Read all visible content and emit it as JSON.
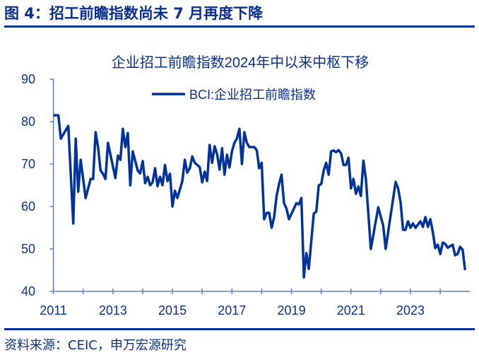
{
  "header": {
    "figure_title": "图 4：招工前瞻指数尚未 7 月再度下降"
  },
  "footer": {
    "source": "资料来源：CEIC，申万宏源研究"
  },
  "colors": {
    "line": "#003399",
    "text": "#0a2f8f",
    "axis": "#5b7fd6"
  },
  "chart_data": {
    "type": "line",
    "title": "企业招工前瞻指数2024年中以来中枢下移",
    "xlabel": "",
    "ylabel": "",
    "ylim": [
      40,
      90
    ],
    "yticks": [
      "90",
      "80",
      "70",
      "60",
      "50",
      "40"
    ],
    "xlim": [
      "2011-01",
      "2025-01"
    ],
    "xticks": [
      "2011",
      "2013",
      "2015",
      "2017",
      "2019",
      "2021",
      "2023"
    ],
    "grid": false,
    "legend": "top-center",
    "series": [
      {
        "name": "BCI:企业招工前瞻指数",
        "x": [
          "2011-01",
          "2011-03",
          "2011-04",
          "2011-07",
          "2011-09",
          "2011-10",
          "2011-11",
          "2011-12",
          "2012-02",
          "2012-04",
          "2012-05",
          "2012-06",
          "2012-07",
          "2012-08",
          "2012-09",
          "2012-10",
          "2012-11",
          "2013-01",
          "2013-02",
          "2013-03",
          "2013-04",
          "2013-05",
          "2013-06",
          "2013-07",
          "2013-08",
          "2013-09",
          "2013-11",
          "2013-12",
          "2014-01",
          "2014-02",
          "2014-03",
          "2014-04",
          "2014-05",
          "2014-06",
          "2014-07",
          "2014-08",
          "2014-09",
          "2014-10",
          "2014-11",
          "2014-12",
          "2015-01",
          "2015-02",
          "2015-03",
          "2015-05",
          "2015-06",
          "2015-07",
          "2015-08",
          "2015-09",
          "2015-10",
          "2015-12",
          "2016-01",
          "2016-02",
          "2016-03",
          "2016-04",
          "2016-05",
          "2016-06",
          "2016-07",
          "2016-08",
          "2016-09",
          "2016-10",
          "2016-11",
          "2016-12",
          "2017-01",
          "2017-02",
          "2017-03",
          "2017-04",
          "2017-05",
          "2017-06",
          "2017-07",
          "2017-08",
          "2017-10",
          "2017-11",
          "2017-12",
          "2018-01",
          "2018-02",
          "2018-03",
          "2018-04",
          "2018-05",
          "2018-06",
          "2018-07",
          "2018-08",
          "2018-09",
          "2018-10",
          "2018-11",
          "2018-12",
          "2019-03",
          "2019-04",
          "2019-05",
          "2019-06",
          "2019-07",
          "2019-08",
          "2019-10",
          "2019-11",
          "2019-12",
          "2020-01",
          "2020-02",
          "2020-03",
          "2020-04",
          "2020-05",
          "2020-06",
          "2020-07",
          "2020-08",
          "2020-09",
          "2020-10",
          "2020-11",
          "2020-12",
          "2021-01",
          "2021-02",
          "2021-03",
          "2021-04",
          "2021-05",
          "2021-06",
          "2021-07",
          "2021-09",
          "2021-12",
          "2022-02",
          "2022-03",
          "2022-05",
          "2022-07",
          "2022-08",
          "2022-09",
          "2022-10",
          "2022-11",
          "2022-12",
          "2023-01",
          "2023-02",
          "2023-03",
          "2023-05",
          "2023-06",
          "2023-07",
          "2023-08",
          "2023-09",
          "2023-10",
          "2023-11",
          "2023-12",
          "2024-01",
          "2024-02",
          "2024-03",
          "2024-04",
          "2024-06",
          "2024-07",
          "2024-08",
          "2024-09",
          "2024-10",
          "2024-11"
        ],
        "values": [
          81.5,
          81.5,
          76,
          79,
          56,
          76,
          63.5,
          71,
          62,
          66.5,
          66.5,
          77.5,
          74,
          68.5,
          67.7,
          66.5,
          75,
          69.5,
          66.7,
          72,
          71,
          78.3,
          74,
          77.3,
          65,
          73,
          68.5,
          67.8,
          70.7,
          65.5,
          67,
          65,
          65.7,
          69,
          64.8,
          67,
          65,
          69.8,
          66,
          67.7,
          60,
          63.7,
          62,
          66,
          71,
          68,
          69,
          71.8,
          70.3,
          69.3,
          65.7,
          68.2,
          66,
          74.5,
          70.3,
          74.2,
          72.3,
          68.7,
          73.7,
          67.5,
          72.2,
          69.2,
          73,
          75,
          76,
          78.3,
          70,
          77.5,
          75,
          74,
          74,
          73.3,
          69,
          70.3,
          57,
          58.5,
          58.5,
          55,
          57.5,
          62.5,
          65.3,
          67.5,
          60.8,
          59.5,
          57,
          60.8,
          60.5,
          62,
          43.3,
          49,
          45.3,
          58.3,
          58.8,
          65,
          65.3,
          68.5,
          70.3,
          67.5,
          73,
          73.2,
          72.8,
          73.3,
          72.5,
          69.8,
          69.8,
          71.5,
          64.3,
          66.5,
          63,
          64.7,
          62.5,
          70.8,
          66.5,
          50,
          59.8,
          55.5,
          50,
          58,
          65.8,
          64.3,
          61,
          54.5,
          54.5,
          56.5,
          55,
          56,
          55,
          56.5,
          55.2,
          57.5,
          55.2,
          57,
          54,
          50.2,
          51,
          48.8,
          51.5,
          51.2,
          50.3,
          51,
          48.5,
          48.8,
          50.5,
          49.8,
          45
        ]
      }
    ]
  }
}
